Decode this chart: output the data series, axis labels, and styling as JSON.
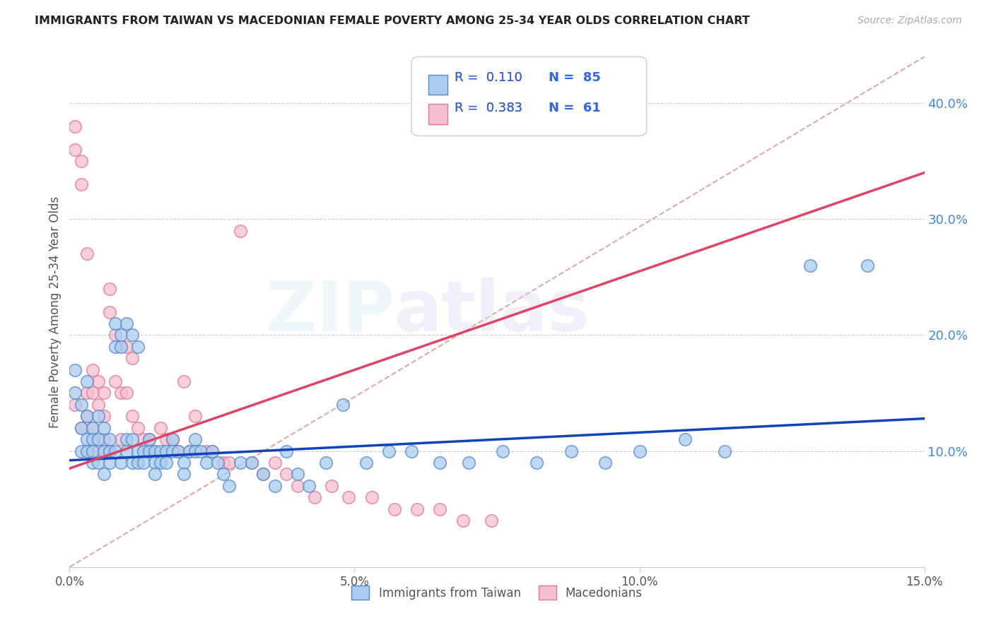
{
  "title": "IMMIGRANTS FROM TAIWAN VS MACEDONIAN FEMALE POVERTY AMONG 25-34 YEAR OLDS CORRELATION CHART",
  "source": "Source: ZipAtlas.com",
  "ylabel": "Female Poverty Among 25-34 Year Olds",
  "xlim": [
    0.0,
    0.15
  ],
  "ylim": [
    0.0,
    0.44
  ],
  "xticks": [
    0.0,
    0.05,
    0.1,
    0.15
  ],
  "xticklabels": [
    "0.0%",
    "5.0%",
    "10.0%",
    "15.0%"
  ],
  "yticks_right": [
    0.1,
    0.2,
    0.3,
    0.4
  ],
  "yticklabels_right": [
    "10.0%",
    "20.0%",
    "30.0%",
    "40.0%"
  ],
  "taiwan_color": "#aaccee",
  "taiwan_edge_color": "#5588cc",
  "macedonian_color": "#f5bfcf",
  "macedonian_edge_color": "#dd7799",
  "taiwan_R": "0.110",
  "taiwan_N": "85",
  "macedonian_R": "0.383",
  "macedonian_N": "61",
  "taiwan_line_color": "#1144bb",
  "macedonian_line_color": "#dd4466",
  "diag_line_color": "#ddaaaa",
  "background_color": "#ffffff",
  "grid_color": "#cccccc",
  "taiwan_scatter_x": [
    0.001,
    0.001,
    0.002,
    0.002,
    0.002,
    0.003,
    0.003,
    0.003,
    0.003,
    0.004,
    0.004,
    0.004,
    0.004,
    0.005,
    0.005,
    0.005,
    0.006,
    0.006,
    0.006,
    0.007,
    0.007,
    0.007,
    0.008,
    0.008,
    0.008,
    0.009,
    0.009,
    0.009,
    0.01,
    0.01,
    0.01,
    0.011,
    0.011,
    0.011,
    0.012,
    0.012,
    0.012,
    0.013,
    0.013,
    0.014,
    0.014,
    0.015,
    0.015,
    0.015,
    0.016,
    0.016,
    0.017,
    0.017,
    0.018,
    0.018,
    0.019,
    0.02,
    0.02,
    0.021,
    0.022,
    0.022,
    0.023,
    0.024,
    0.025,
    0.026,
    0.027,
    0.028,
    0.03,
    0.032,
    0.034,
    0.036,
    0.038,
    0.04,
    0.042,
    0.045,
    0.048,
    0.052,
    0.056,
    0.06,
    0.065,
    0.07,
    0.076,
    0.082,
    0.088,
    0.094,
    0.1,
    0.108,
    0.115,
    0.13,
    0.14
  ],
  "taiwan_scatter_y": [
    0.17,
    0.15,
    0.14,
    0.12,
    0.1,
    0.13,
    0.11,
    0.1,
    0.16,
    0.12,
    0.11,
    0.1,
    0.09,
    0.13,
    0.11,
    0.09,
    0.12,
    0.1,
    0.08,
    0.11,
    0.1,
    0.09,
    0.21,
    0.19,
    0.1,
    0.2,
    0.19,
    0.09,
    0.21,
    0.11,
    0.1,
    0.2,
    0.11,
    0.09,
    0.19,
    0.1,
    0.09,
    0.1,
    0.09,
    0.11,
    0.1,
    0.1,
    0.09,
    0.08,
    0.1,
    0.09,
    0.1,
    0.09,
    0.11,
    0.1,
    0.1,
    0.09,
    0.08,
    0.1,
    0.11,
    0.1,
    0.1,
    0.09,
    0.1,
    0.09,
    0.08,
    0.07,
    0.09,
    0.09,
    0.08,
    0.07,
    0.1,
    0.08,
    0.07,
    0.09,
    0.14,
    0.09,
    0.1,
    0.1,
    0.09,
    0.09,
    0.1,
    0.09,
    0.1,
    0.09,
    0.1,
    0.11,
    0.1,
    0.26,
    0.26
  ],
  "macedonian_scatter_x": [
    0.001,
    0.001,
    0.001,
    0.002,
    0.002,
    0.002,
    0.003,
    0.003,
    0.003,
    0.003,
    0.004,
    0.004,
    0.004,
    0.005,
    0.005,
    0.005,
    0.006,
    0.006,
    0.006,
    0.007,
    0.007,
    0.007,
    0.008,
    0.008,
    0.009,
    0.009,
    0.01,
    0.01,
    0.011,
    0.011,
    0.012,
    0.013,
    0.013,
    0.014,
    0.015,
    0.016,
    0.017,
    0.018,
    0.019,
    0.02,
    0.021,
    0.022,
    0.024,
    0.025,
    0.027,
    0.028,
    0.03,
    0.032,
    0.034,
    0.036,
    0.038,
    0.04,
    0.043,
    0.046,
    0.049,
    0.053,
    0.057,
    0.061,
    0.065,
    0.069,
    0.074
  ],
  "macedonian_scatter_y": [
    0.38,
    0.36,
    0.14,
    0.35,
    0.33,
    0.12,
    0.27,
    0.15,
    0.13,
    0.1,
    0.17,
    0.15,
    0.12,
    0.16,
    0.14,
    0.1,
    0.15,
    0.13,
    0.11,
    0.24,
    0.22,
    0.1,
    0.2,
    0.16,
    0.15,
    0.11,
    0.19,
    0.15,
    0.18,
    0.13,
    0.12,
    0.11,
    0.1,
    0.11,
    0.1,
    0.12,
    0.11,
    0.11,
    0.1,
    0.16,
    0.1,
    0.13,
    0.1,
    0.1,
    0.09,
    0.09,
    0.29,
    0.09,
    0.08,
    0.09,
    0.08,
    0.07,
    0.06,
    0.07,
    0.06,
    0.06,
    0.05,
    0.05,
    0.05,
    0.04,
    0.04
  ],
  "taiwan_line_y0": 0.092,
  "taiwan_line_y1": 0.128,
  "macedonian_line_y0": 0.085,
  "macedonian_line_y1": 0.34
}
